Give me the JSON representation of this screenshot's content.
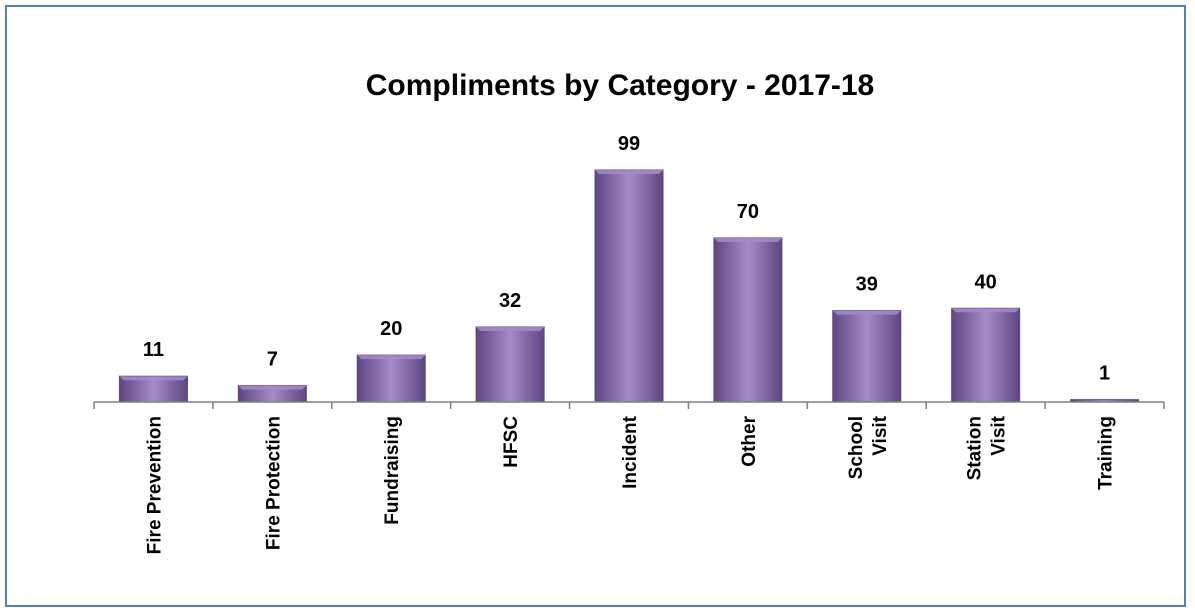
{
  "chart_data": {
    "type": "bar",
    "title": "Compliments by Category - 2017-18",
    "xlabel": "",
    "ylabel": "",
    "categories": [
      [
        "Fire Prevention"
      ],
      [
        "Fire Protection"
      ],
      [
        "Fundraising"
      ],
      [
        "HFSC"
      ],
      [
        "Incident"
      ],
      [
        "Other"
      ],
      [
        "School",
        "Visit"
      ],
      [
        "Station",
        "Visit"
      ],
      [
        "Training"
      ]
    ],
    "values": [
      11,
      7,
      20,
      32,
      99,
      70,
      39,
      40,
      1
    ],
    "ylim": [
      0,
      99
    ],
    "grid": false,
    "legend": "none",
    "colors": {
      "bar_fill": "#8064a2",
      "bar_light": "#a58bc9",
      "bar_dark": "#5e4680",
      "frame_border": "#4f81bd",
      "axis": "#808080"
    }
  }
}
